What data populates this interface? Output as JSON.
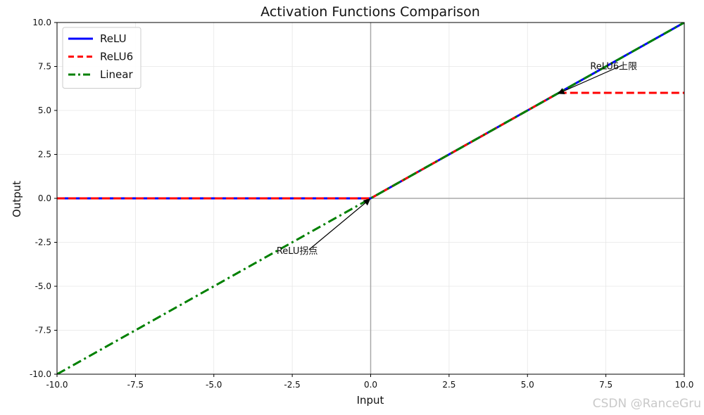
{
  "chart_data": {
    "type": "line",
    "title": "Activation Functions Comparison",
    "xlabel": "Input",
    "ylabel": "Output",
    "xlim": [
      -10,
      10
    ],
    "ylim": [
      -10,
      10
    ],
    "xticks": [
      -10,
      -7.5,
      -5,
      -2.5,
      0,
      2.5,
      5,
      7.5,
      10
    ],
    "yticks": [
      -10,
      -7.5,
      -5,
      -2.5,
      0,
      2.5,
      5,
      7.5,
      10
    ],
    "xtick_labels": [
      "-10.0",
      "-7.5",
      "-5.0",
      "-2.5",
      "0.0",
      "2.5",
      "5.0",
      "7.5",
      "10.0"
    ],
    "ytick_labels": [
      "-10.0",
      "-7.5",
      "-5.0",
      "-2.5",
      "0.0",
      "2.5",
      "5.0",
      "7.5",
      "10.0"
    ],
    "grid": true,
    "legend_position": "top-left",
    "reference_lines": {
      "x": 0,
      "y": 0
    },
    "series": [
      {
        "name": "ReLU",
        "color": "#0000ff",
        "style": "solid",
        "x": [
          -10,
          0,
          10
        ],
        "y": [
          0,
          0,
          10
        ]
      },
      {
        "name": "ReLU6",
        "color": "#ff0000",
        "style": "dashed",
        "x": [
          -10,
          0,
          6,
          10
        ],
        "y": [
          0,
          0,
          6,
          6
        ]
      },
      {
        "name": "Linear",
        "color": "#008000",
        "style": "dashdot",
        "x": [
          -10,
          10
        ],
        "y": [
          -10,
          10
        ]
      }
    ],
    "annotations": [
      {
        "text": "ReLU拐点",
        "text_at": [
          -3,
          -3
        ],
        "arrow_to": [
          0,
          0
        ]
      },
      {
        "text": "ReLU6上限",
        "text_at": [
          7,
          7.5
        ],
        "arrow_to": [
          6,
          6
        ]
      }
    ]
  },
  "watermark": "CSDN @RanceGru"
}
